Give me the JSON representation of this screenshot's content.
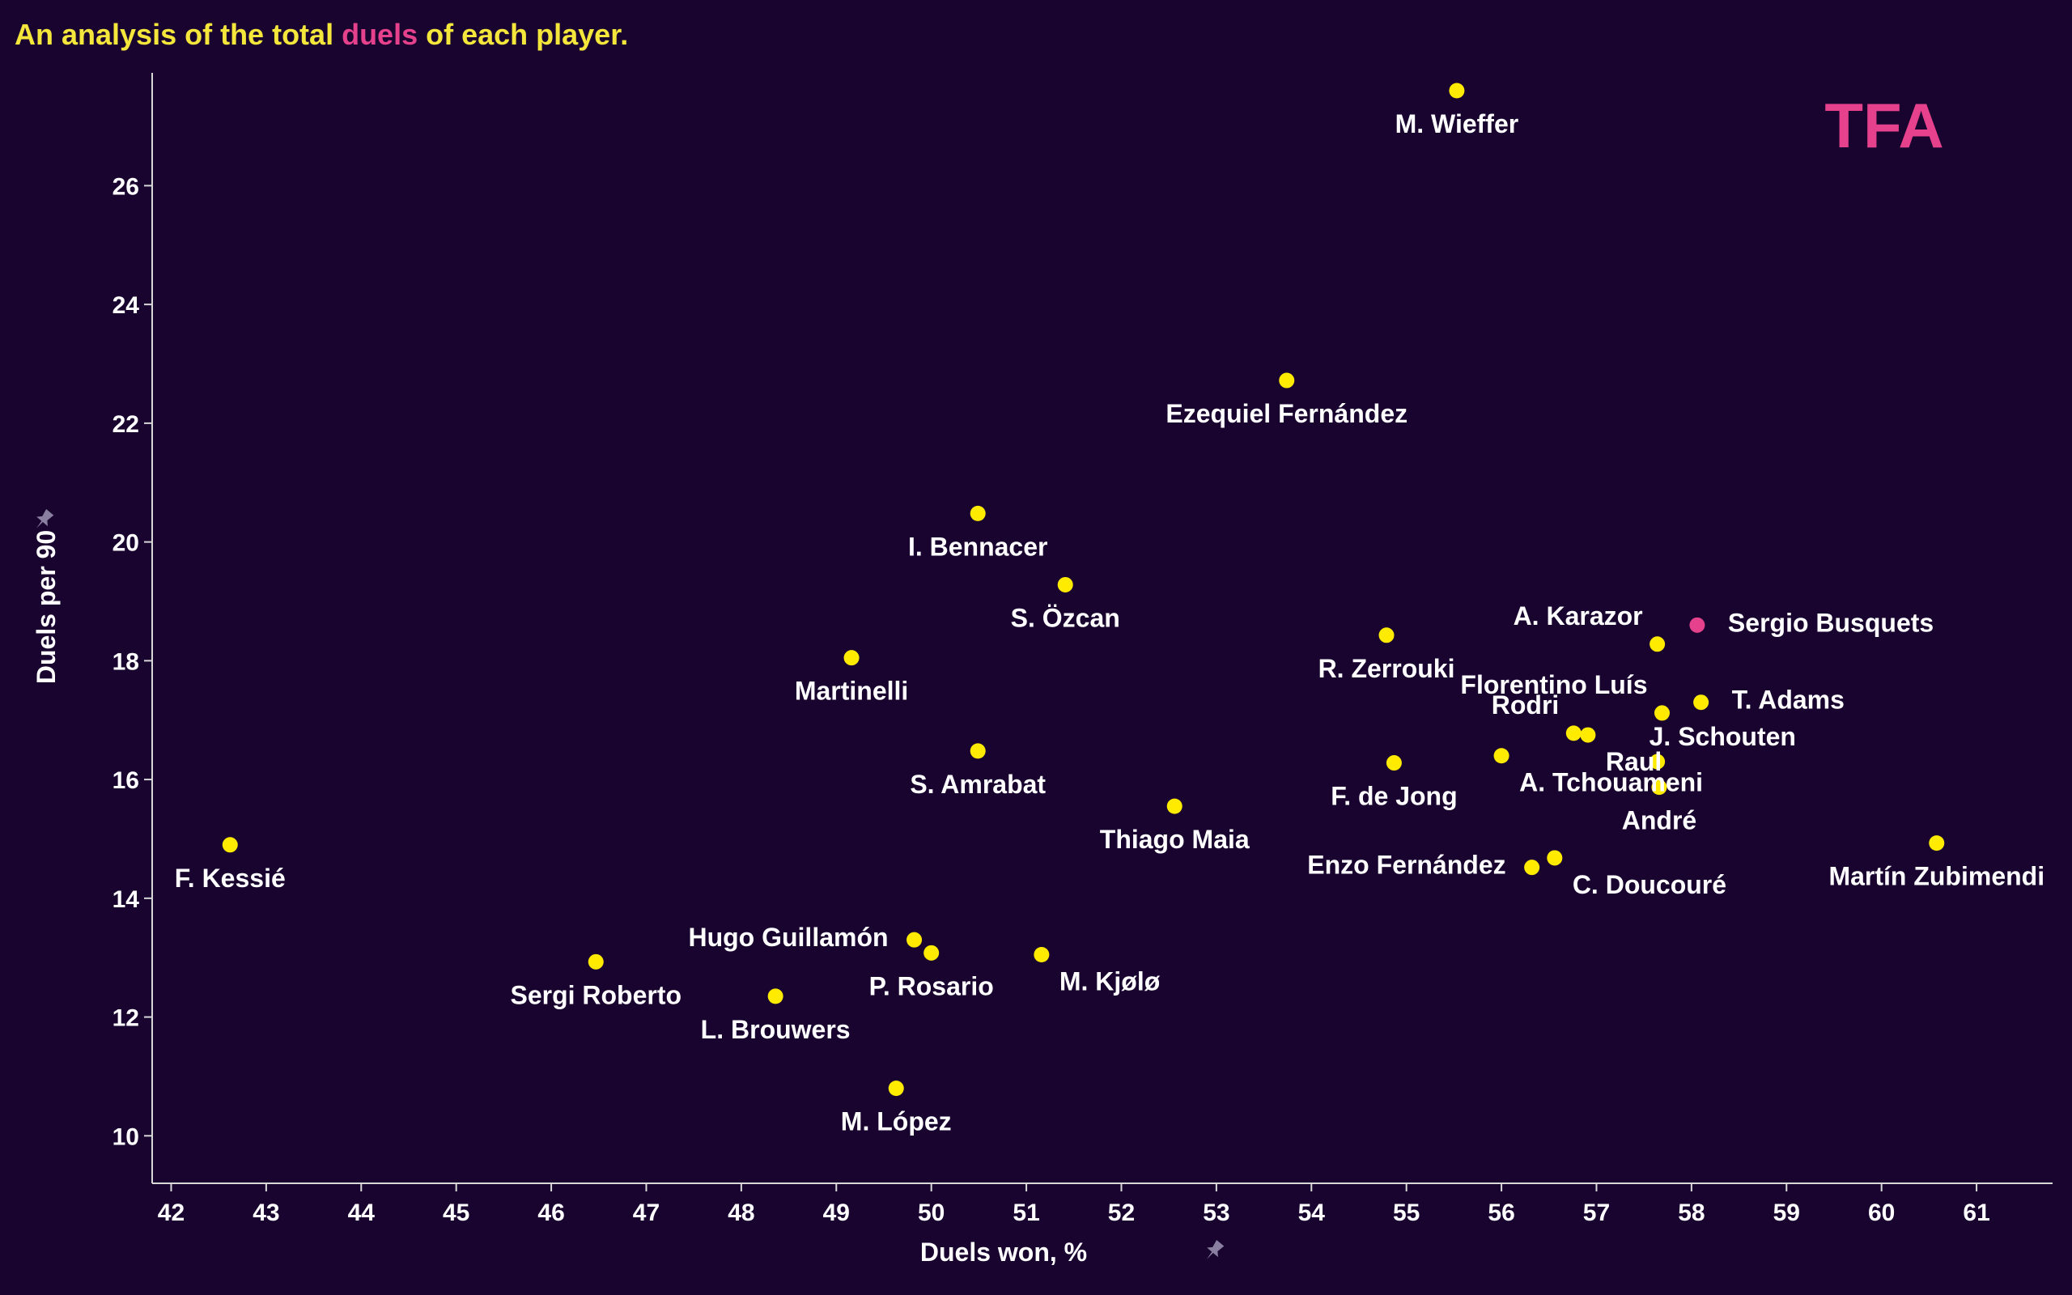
{
  "title": {
    "prefix": "An analysis of the total ",
    "highlight": "duels",
    "suffix": " of each player."
  },
  "logo": "TFA",
  "colors": {
    "background": "#18042f",
    "point": "#ffeb00",
    "highlight_point": "#e6418c",
    "title": "#f5e63c",
    "accent": "#e6418c",
    "axis": "#d8d8d8"
  },
  "icons": {
    "axis_pin": "pin-icon"
  },
  "chart_data": {
    "type": "scatter",
    "xlabel": "Duels won, %",
    "ylabel": "Duels per 90",
    "xlim": [
      41.8,
      61.8
    ],
    "ylim": [
      9.2,
      27.9
    ],
    "xticks": [
      42,
      43,
      44,
      45,
      46,
      47,
      48,
      49,
      50,
      51,
      52,
      53,
      54,
      55,
      56,
      57,
      58,
      59,
      60,
      61
    ],
    "yticks": [
      10,
      12,
      14,
      16,
      18,
      20,
      22,
      24,
      26
    ],
    "points": [
      {
        "name": "M. Wieffer",
        "x": 55.53,
        "y": 27.6,
        "highlight": false,
        "label_pos": "below"
      },
      {
        "name": "Ezequiel Fernández",
        "x": 53.74,
        "y": 22.72,
        "highlight": false,
        "label_pos": "below"
      },
      {
        "name": "I. Bennacer",
        "x": 50.49,
        "y": 20.48,
        "highlight": false,
        "label_pos": "below"
      },
      {
        "name": "S. Özcan",
        "x": 51.41,
        "y": 19.28,
        "highlight": false,
        "label_pos": "below"
      },
      {
        "name": "Martinelli",
        "x": 49.16,
        "y": 18.05,
        "highlight": false,
        "label_pos": "below"
      },
      {
        "name": "S. Amrabat",
        "x": 50.49,
        "y": 16.48,
        "highlight": false,
        "label_pos": "below"
      },
      {
        "name": "Thiago Maia",
        "x": 52.56,
        "y": 15.55,
        "highlight": false,
        "label_pos": "below"
      },
      {
        "name": "F. Kessié",
        "x": 42.62,
        "y": 14.9,
        "highlight": false,
        "label_pos": "below"
      },
      {
        "name": "Hugo Guillamón",
        "x": 49.82,
        "y": 13.3,
        "highlight": false,
        "label_pos": "left"
      },
      {
        "name": "P. Rosario",
        "x": 50.0,
        "y": 13.08,
        "highlight": false,
        "label_pos": "below"
      },
      {
        "name": "M. Kjølø",
        "x": 51.16,
        "y": 13.05,
        "highlight": false,
        "label_pos": "below-right"
      },
      {
        "name": "Sergi Roberto",
        "x": 46.47,
        "y": 12.93,
        "highlight": false,
        "label_pos": "below"
      },
      {
        "name": "L. Brouwers",
        "x": 48.36,
        "y": 12.35,
        "highlight": false,
        "label_pos": "below"
      },
      {
        "name": "M. López",
        "x": 49.63,
        "y": 10.8,
        "highlight": false,
        "label_pos": "below"
      },
      {
        "name": "R. Zerrouki",
        "x": 54.79,
        "y": 18.43,
        "highlight": false,
        "label_pos": "below"
      },
      {
        "name": "F. de Jong",
        "x": 54.87,
        "y": 16.28,
        "highlight": false,
        "label_pos": "below"
      },
      {
        "name": "Rodri",
        "x": 56.76,
        "y": 16.78,
        "highlight": false,
        "label_pos": "upper-left"
      },
      {
        "name": "Raul",
        "x": 56.91,
        "y": 16.75,
        "highlight": false,
        "label_pos": "below-right"
      },
      {
        "name": "A. Tchouameni",
        "x": 56.0,
        "y": 16.4,
        "highlight": false,
        "label_pos": "below-right"
      },
      {
        "name": "A. Karazor",
        "x": 57.64,
        "y": 18.28,
        "highlight": false,
        "label_pos": "upper-left"
      },
      {
        "name": "J. Schouten",
        "x": 57.64,
        "y": 16.3,
        "highlight": false,
        "label_pos": "above-right"
      },
      {
        "name": "Florentino Luís",
        "x": 57.69,
        "y": 17.12,
        "highlight": false,
        "label_pos": "upper-left"
      },
      {
        "name": "T. Adams",
        "x": 58.1,
        "y": 17.3,
        "highlight": false,
        "label_pos": "right"
      },
      {
        "name": "André",
        "x": 57.66,
        "y": 15.87,
        "highlight": false,
        "label_pos": "below"
      },
      {
        "name": "Enzo Fernández",
        "x": 56.32,
        "y": 14.52,
        "highlight": false,
        "label_pos": "left"
      },
      {
        "name": "C. Doucouré",
        "x": 56.56,
        "y": 14.68,
        "highlight": false,
        "label_pos": "below-right"
      },
      {
        "name": "Martín Zubimendi",
        "x": 60.58,
        "y": 14.93,
        "highlight": false,
        "label_pos": "below"
      },
      {
        "name": "Sergio Busquets",
        "x": 58.06,
        "y": 18.6,
        "highlight": true,
        "label_pos": "right"
      }
    ]
  }
}
